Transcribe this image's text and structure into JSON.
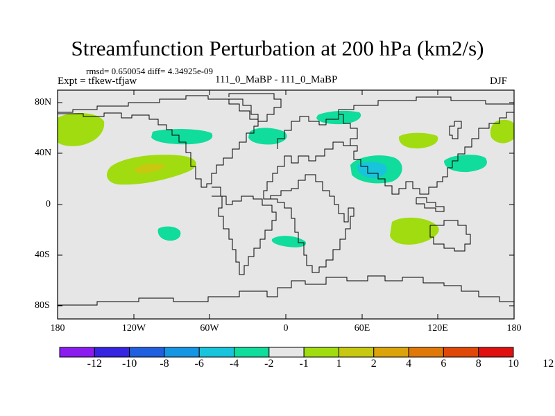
{
  "title": "Streamfunction Perturbation at 200 hPa (km2/s)",
  "stats": "rmsd= 0.650054 diff= 4.34925e-09",
  "left_label": "Expt = tfkew-tfjaw",
  "center_label": "111_0_MaBP - 111_0_MaBP",
  "right_label": "DJF",
  "lat_ticks": [
    "80N",
    "40N",
    "0",
    "40S",
    "80S"
  ],
  "lon_ticks": [
    "180",
    "120W",
    "60W",
    "0",
    "60E",
    "120E",
    "180"
  ],
  "colorbar": {
    "colors": [
      "#8a1cf0",
      "#3524e0",
      "#1f5fe0",
      "#1496e4",
      "#17c4dc",
      "#10dc9c",
      "#e6e6e6",
      "#a0dc10",
      "#c8c810",
      "#dca40a",
      "#e07808",
      "#e04808",
      "#e01010"
    ],
    "labels": [
      "-12",
      "-10",
      "-8",
      "-6",
      "-4",
      "-2",
      "-1",
      "1",
      "2",
      "4",
      "6",
      "8",
      "10",
      "12"
    ]
  },
  "map": {
    "background_color": "#e6e6e6",
    "land_outline_color": "#000000"
  }
}
